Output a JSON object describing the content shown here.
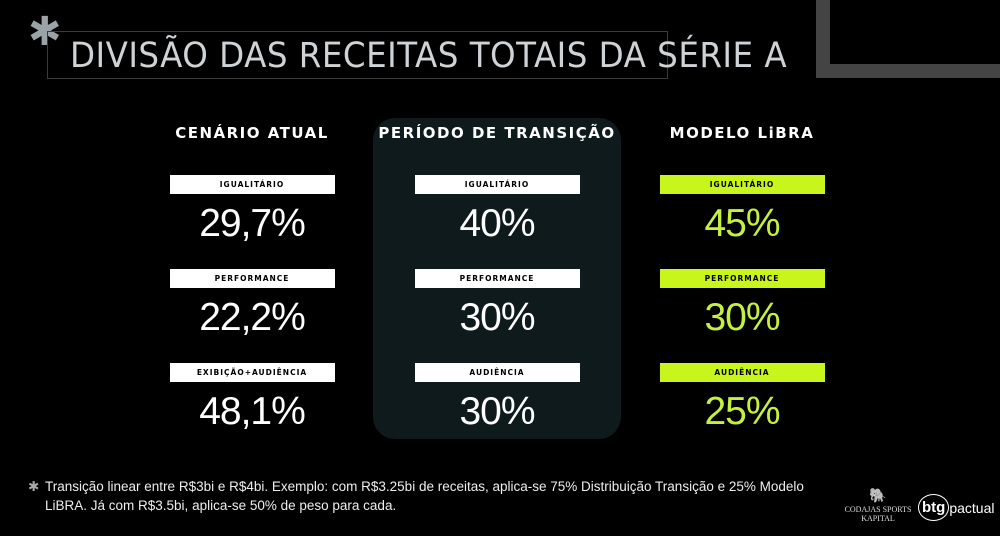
{
  "title": "DIVISÃO DAS RECEITAS TOTAIS DA SÉRIE A",
  "columns": [
    {
      "heading": "CENÁRIO ATUAL",
      "items": [
        {
          "label": "IGUALITÁRIO",
          "value": "29,7%"
        },
        {
          "label": "PERFORMANCE",
          "value": "22,2%"
        },
        {
          "label": "EXIBIÇÃO+AUDIÊNCIA",
          "value": "48,1%"
        }
      ]
    },
    {
      "heading": "PERÍODO DE TRANSIÇÃO",
      "items": [
        {
          "label": "IGUALITÁRIO",
          "value": "40%"
        },
        {
          "label": "PERFORMANCE",
          "value": "30%"
        },
        {
          "label": "AUDIÊNCIA",
          "value": "30%"
        }
      ]
    },
    {
      "heading": "MODELO LiBRA",
      "items": [
        {
          "label": "IGUALITÁRIO",
          "value": "45%"
        },
        {
          "label": "PERFORMANCE",
          "value": "30%"
        },
        {
          "label": "AUDIÊNCIA",
          "value": "25%"
        }
      ]
    }
  ],
  "footnote": "Transição linear entre R$3bi e R$4bi. Exemplo: com R$3.25bi de receitas, aplica-se 75% Distribuição Transição e 25% Modelo LiBRA. Já com R$3.5bi, aplica-se 50% de peso para cada.",
  "logos": {
    "codajas": "CODAJAS SPORTS KAPITAL",
    "btg_mark": "btg",
    "btg_text": "pactual"
  },
  "colors": {
    "accent": "#c8f51c",
    "panel": "#0e1a1b",
    "frame": "#444444"
  }
}
